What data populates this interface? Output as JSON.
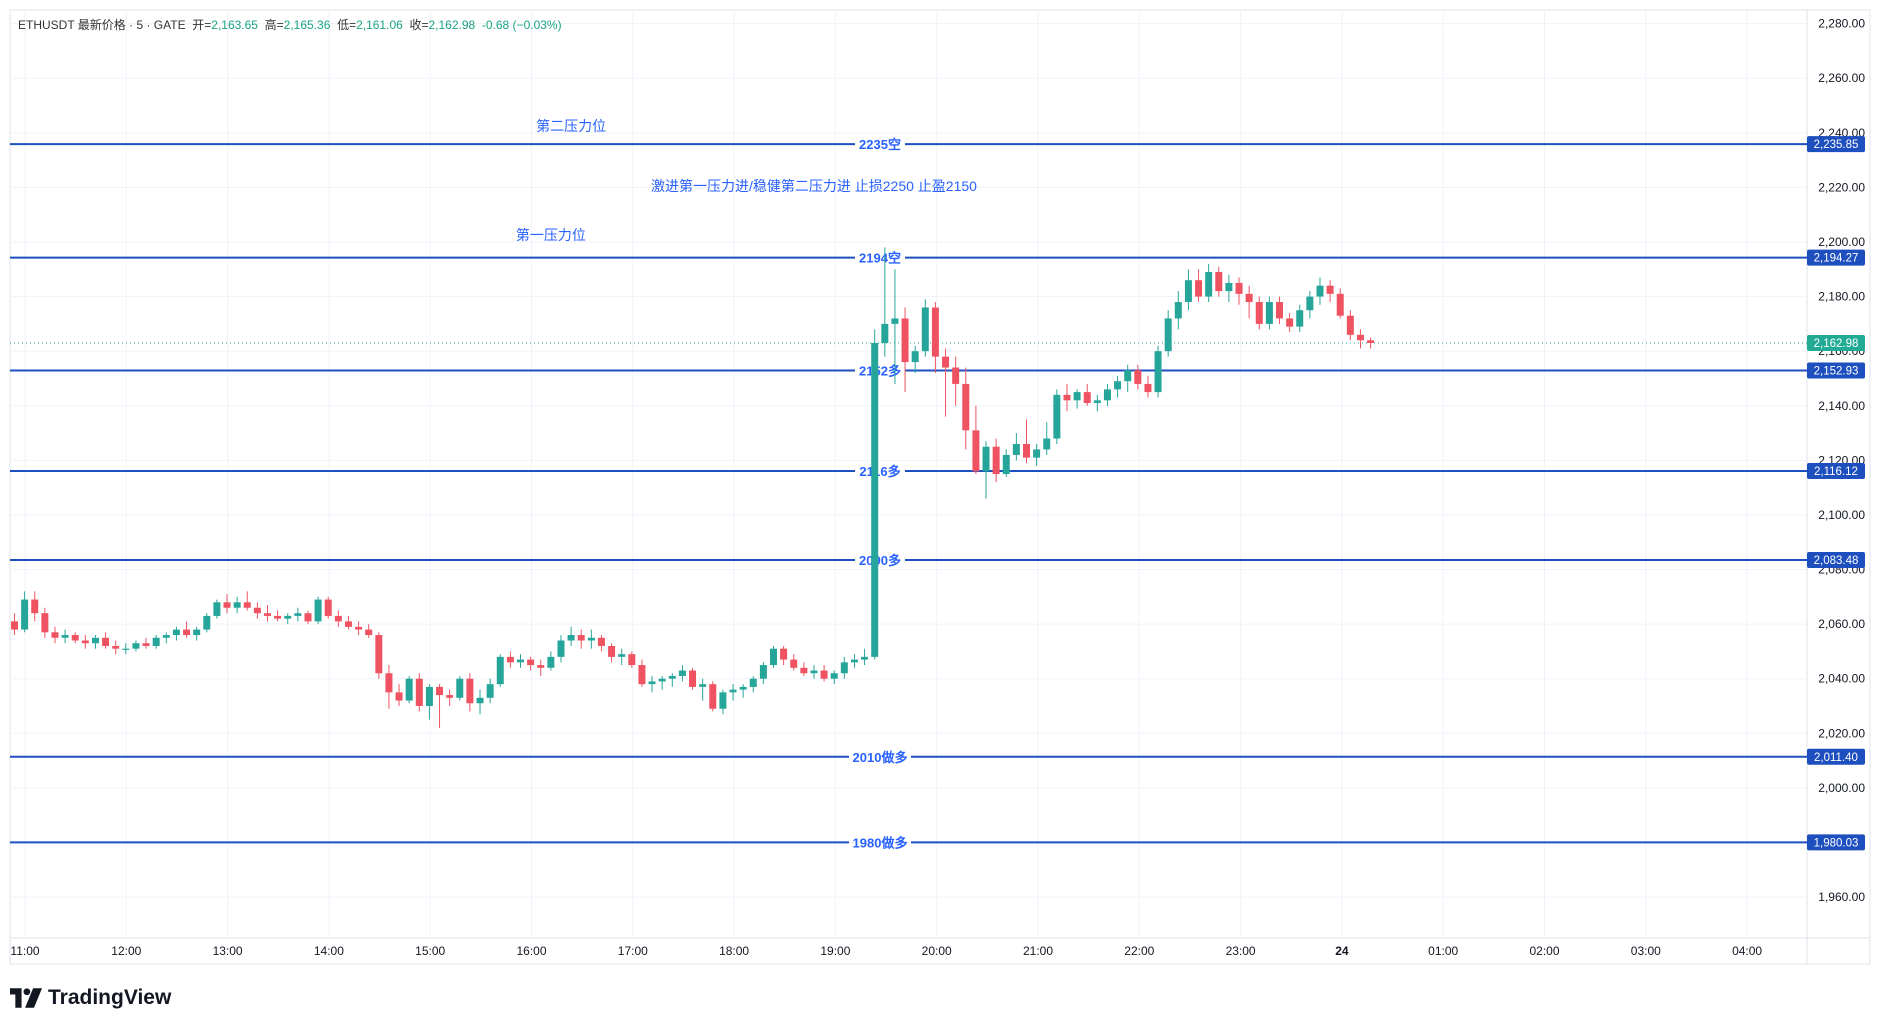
{
  "header": {
    "symbol": "ETHUSDT 最新价格 · 5 · GATE",
    "open_label": "开=",
    "open": "2,163.65",
    "high_label": "高=",
    "high": "2,165.36",
    "low_label": "低=",
    "low": "2,161.06",
    "close_label": "收=",
    "close": "2,162.98",
    "change": "-0.68 (−0.03%)"
  },
  "brand": {
    "name": "TradingView"
  },
  "colors": {
    "up": "#26a69a",
    "down": "#ef5362",
    "level_line": "#1e4fbf",
    "label_text": "#2962ff"
  },
  "chart_data": {
    "type": "candlestick",
    "title": "",
    "ylim": [
      1945,
      2285
    ],
    "y_ticks": [
      "2,280.00",
      "2,260.00",
      "2,240.00",
      "2,220.00",
      "2,200.00",
      "2,180.00",
      "2,160.00",
      "2,140.00",
      "2,120.00",
      "2,100.00",
      "2,080.00",
      "2,060.00",
      "2,040.00",
      "2,020.00",
      "2,000.00",
      "1,980.00",
      "1,960.00"
    ],
    "x_ticks": [
      "11:00",
      "12:00",
      "13:00",
      "14:00",
      "15:00",
      "16:00",
      "17:00",
      "18:00",
      "19:00",
      "20:00",
      "21:00",
      "22:00",
      "23:00",
      "24",
      "01:00",
      "02:00",
      "03:00",
      "04:00"
    ],
    "candles": [
      [
        2061,
        2064,
        2056,
        2058
      ],
      [
        2058,
        2072,
        2057,
        2069
      ],
      [
        2069,
        2072,
        2061,
        2064
      ],
      [
        2064,
        2066,
        2055,
        2057
      ],
      [
        2057,
        2059,
        2053,
        2055
      ],
      [
        2055,
        2058,
        2053,
        2056
      ],
      [
        2056,
        2057,
        2053,
        2054
      ],
      [
        2054,
        2056,
        2051,
        2053
      ],
      [
        2053,
        2056,
        2051,
        2055
      ],
      [
        2055,
        2057,
        2051,
        2052
      ],
      [
        2052,
        2054,
        2049,
        2051
      ],
      [
        2051,
        2053,
        2049,
        2051
      ],
      [
        2051,
        2054,
        2050,
        2053
      ],
      [
        2053,
        2055,
        2051,
        2052
      ],
      [
        2052,
        2056,
        2051,
        2055
      ],
      [
        2055,
        2057,
        2053,
        2056
      ],
      [
        2056,
        2059,
        2054,
        2058
      ],
      [
        2058,
        2061,
        2055,
        2056
      ],
      [
        2056,
        2059,
        2054,
        2058
      ],
      [
        2058,
        2064,
        2057,
        2063
      ],
      [
        2063,
        2069,
        2062,
        2068
      ],
      [
        2068,
        2071,
        2064,
        2066
      ],
      [
        2066,
        2070,
        2064,
        2068
      ],
      [
        2068,
        2072,
        2065,
        2066
      ],
      [
        2066,
        2068,
        2062,
        2064
      ],
      [
        2064,
        2067,
        2061,
        2063
      ],
      [
        2063,
        2065,
        2061,
        2062
      ],
      [
        2062,
        2064,
        2060,
        2063
      ],
      [
        2063,
        2066,
        2061,
        2064
      ],
      [
        2064,
        2065,
        2060,
        2061
      ],
      [
        2061,
        2070,
        2060,
        2069
      ],
      [
        2069,
        2070,
        2062,
        2063
      ],
      [
        2063,
        2065,
        2059,
        2061
      ],
      [
        2061,
        2063,
        2058,
        2059
      ],
      [
        2059,
        2061,
        2056,
        2058
      ],
      [
        2058,
        2060,
        2055,
        2056
      ],
      [
        2056,
        2057,
        2040,
        2042
      ],
      [
        2042,
        2045,
        2029,
        2035
      ],
      [
        2035,
        2038,
        2030,
        2032
      ],
      [
        2032,
        2041,
        2031,
        2040
      ],
      [
        2040,
        2042,
        2028,
        2030
      ],
      [
        2030,
        2038,
        2025,
        2037
      ],
      [
        2037,
        2038,
        2022,
        2034
      ],
      [
        2034,
        2036,
        2030,
        2033
      ],
      [
        2033,
        2041,
        2032,
        2040
      ],
      [
        2040,
        2042,
        2028,
        2031
      ],
      [
        2031,
        2036,
        2027,
        2033
      ],
      [
        2033,
        2040,
        2031,
        2038
      ],
      [
        2038,
        2049,
        2037,
        2048
      ],
      [
        2048,
        2050,
        2044,
        2046
      ],
      [
        2046,
        2049,
        2044,
        2047
      ],
      [
        2047,
        2048,
        2043,
        2045
      ],
      [
        2045,
        2047,
        2041,
        2044
      ],
      [
        2044,
        2050,
        2043,
        2048
      ],
      [
        2048,
        2056,
        2046,
        2054
      ],
      [
        2054,
        2059,
        2052,
        2056
      ],
      [
        2056,
        2058,
        2051,
        2054
      ],
      [
        2054,
        2058,
        2051,
        2055
      ],
      [
        2055,
        2056,
        2050,
        2052
      ],
      [
        2052,
        2053,
        2046,
        2048
      ],
      [
        2048,
        2051,
        2045,
        2049
      ],
      [
        2049,
        2050,
        2044,
        2045
      ],
      [
        2045,
        2047,
        2037,
        2038
      ],
      [
        2038,
        2041,
        2035,
        2039
      ],
      [
        2039,
        2041,
        2036,
        2040
      ],
      [
        2040,
        2042,
        2037,
        2041
      ],
      [
        2041,
        2045,
        2039,
        2043
      ],
      [
        2043,
        2044,
        2036,
        2037
      ],
      [
        2037,
        2040,
        2032,
        2038
      ],
      [
        2038,
        2039,
        2028,
        2029
      ],
      [
        2029,
        2036,
        2027,
        2035
      ],
      [
        2035,
        2038,
        2032,
        2036
      ],
      [
        2036,
        2038,
        2033,
        2037
      ],
      [
        2037,
        2041,
        2035,
        2040
      ],
      [
        2040,
        2046,
        2038,
        2045
      ],
      [
        2045,
        2052,
        2044,
        2051
      ],
      [
        2051,
        2052,
        2045,
        2047
      ],
      [
        2047,
        2049,
        2043,
        2044
      ],
      [
        2044,
        2046,
        2041,
        2042
      ],
      [
        2042,
        2045,
        2040,
        2043
      ],
      [
        2043,
        2045,
        2039,
        2040
      ],
      [
        2040,
        2043,
        2038,
        2042
      ],
      [
        2042,
        2048,
        2040,
        2046
      ],
      [
        2046,
        2049,
        2044,
        2047
      ],
      [
        2047,
        2051,
        2045,
        2048
      ],
      [
        2048,
        2168,
        2047,
        2163
      ],
      [
        2163,
        2198,
        2158,
        2170
      ],
      [
        2170,
        2190,
        2148,
        2172
      ],
      [
        2172,
        2176,
        2145,
        2156
      ],
      [
        2156,
        2162,
        2152,
        2160
      ],
      [
        2160,
        2179,
        2158,
        2176
      ],
      [
        2176,
        2178,
        2152,
        2158
      ],
      [
        2158,
        2161,
        2136,
        2154
      ],
      [
        2154,
        2158,
        2140,
        2148
      ],
      [
        2148,
        2154,
        2124,
        2131
      ],
      [
        2131,
        2140,
        2115,
        2116
      ],
      [
        2116,
        2127,
        2106,
        2125
      ],
      [
        2125,
        2128,
        2112,
        2115
      ],
      [
        2115,
        2124,
        2114,
        2122
      ],
      [
        2122,
        2130,
        2120,
        2126
      ],
      [
        2126,
        2135,
        2119,
        2121
      ],
      [
        2121,
        2126,
        2118,
        2124
      ],
      [
        2124,
        2134,
        2122,
        2128
      ],
      [
        2128,
        2146,
        2126,
        2144
      ],
      [
        2144,
        2148,
        2138,
        2142
      ],
      [
        2142,
        2146,
        2139,
        2145
      ],
      [
        2145,
        2148,
        2140,
        2141
      ],
      [
        2141,
        2144,
        2138,
        2142
      ],
      [
        2142,
        2148,
        2140,
        2146
      ],
      [
        2146,
        2151,
        2143,
        2149
      ],
      [
        2149,
        2155,
        2145,
        2153
      ],
      [
        2153,
        2155,
        2146,
        2148
      ],
      [
        2148,
        2151,
        2143,
        2145
      ],
      [
        2145,
        2162,
        2143,
        2160
      ],
      [
        2160,
        2175,
        2158,
        2172
      ],
      [
        2172,
        2182,
        2168,
        2178
      ],
      [
        2178,
        2190,
        2175,
        2186
      ],
      [
        2186,
        2190,
        2178,
        2180
      ],
      [
        2180,
        2192,
        2178,
        2189
      ],
      [
        2189,
        2191,
        2180,
        2182
      ],
      [
        2182,
        2188,
        2178,
        2185
      ],
      [
        2185,
        2187,
        2177,
        2181
      ],
      [
        2181,
        2184,
        2172,
        2178
      ],
      [
        2178,
        2180,
        2168,
        2170
      ],
      [
        2170,
        2180,
        2168,
        2178
      ],
      [
        2178,
        2180,
        2170,
        2172
      ],
      [
        2172,
        2174,
        2167,
        2169
      ],
      [
        2169,
        2177,
        2167,
        2175
      ],
      [
        2175,
        2182,
        2172,
        2180
      ],
      [
        2180,
        2187,
        2177,
        2184
      ],
      [
        2184,
        2186,
        2178,
        2181
      ],
      [
        2181,
        2183,
        2172,
        2173
      ],
      [
        2173,
        2175,
        2164,
        2166
      ],
      [
        2166,
        2168,
        2161,
        2164
      ],
      [
        2164,
        2165,
        2161,
        2163
      ]
    ],
    "levels": [
      {
        "price": 2235.85,
        "label": "2235空",
        "price_label": "2,235.85"
      },
      {
        "price": 2194.27,
        "label": "2194空",
        "price_label": "2,194.27"
      },
      {
        "price": 2152.93,
        "label": "2152多",
        "price_label": "2,152.93"
      },
      {
        "price": 2116.12,
        "label": "2116多",
        "price_label": "2,116.12"
      },
      {
        "price": 2083.48,
        "label": "2090多",
        "price_label": "2,083.48"
      },
      {
        "price": 2011.4,
        "label": "2010做多",
        "price_label": "2,011.40"
      },
      {
        "price": 1980.03,
        "label": "1980做多",
        "price_label": "1,980.03"
      }
    ],
    "current_price": {
      "price": 2162.98,
      "label": "2,162.98"
    },
    "annotations": [
      {
        "text": "第二压力位",
        "price": 2242.5,
        "candle": 55
      },
      {
        "text": "激进第一压力进/稳健第二压力进 止损2250 止盈2150",
        "price": 2220.5,
        "candle": 79
      },
      {
        "text": "第一压力位",
        "price": 2202.5,
        "candle": 53
      }
    ]
  }
}
